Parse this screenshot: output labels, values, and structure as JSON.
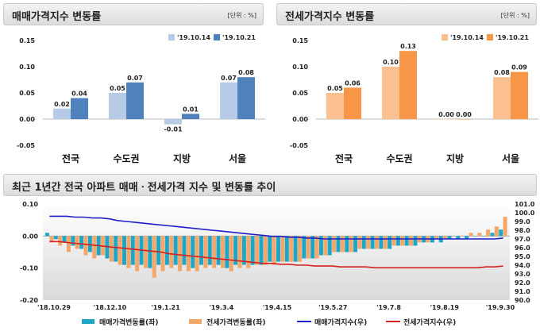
{
  "panels": {
    "sale": {
      "title": "매매가격지수 변동률",
      "unit": "[단위 : %]"
    },
    "jeonse": {
      "title": "전세가격지수 변동률",
      "unit": "[단위 : %]"
    },
    "trend": {
      "title": "최근 1년간 전국 아파트 매매ㆍ전세가격 지수 및 변동률 추이"
    }
  },
  "colors": {
    "sale_prev": "#b7cbe6",
    "sale_curr": "#4f81bd",
    "jeonse_prev": "#fac090",
    "jeonse_curr": "#f79646",
    "idx_sale": "#1f1fc8",
    "idx_jeonse": "#d42020",
    "bar_sale": "#1ea6c6",
    "bar_jeonse": "#f4a76b"
  },
  "chart_data": [
    {
      "type": "bar",
      "title": "매매가격지수 변동률",
      "unit": "[단위 : %]",
      "categories": [
        "전국",
        "수도권",
        "지방",
        "서울"
      ],
      "series": [
        {
          "name": "'19.10.14",
          "values": [
            0.02,
            0.05,
            -0.01,
            0.07
          ]
        },
        {
          "name": "'19.10.21",
          "values": [
            0.04,
            0.07,
            0.01,
            0.08
          ]
        }
      ],
      "labels": [
        [
          "0.02",
          "0.05",
          "-0.01",
          "0.07"
        ],
        [
          "0.04",
          "0.07",
          "0.01",
          "0.08"
        ]
      ],
      "ylim": [
        -0.05,
        0.15
      ],
      "yticks": [
        "0.15",
        "0.10",
        "0.05",
        "0.00",
        "-0.05"
      ],
      "legend": "top-right"
    },
    {
      "type": "bar",
      "title": "전세가격지수 변동률",
      "unit": "[단위 : %]",
      "categories": [
        "전국",
        "수도권",
        "지방",
        "서울"
      ],
      "series": [
        {
          "name": "'19.10.14",
          "values": [
            0.05,
            0.1,
            0.0,
            0.08
          ]
        },
        {
          "name": "'19.10.21",
          "values": [
            0.06,
            0.13,
            0.0,
            0.09
          ]
        }
      ],
      "labels": [
        [
          "0.05",
          "0.10",
          "0.00",
          "0.08"
        ],
        [
          "0.06",
          "0.13",
          "0.00",
          "0.09"
        ]
      ],
      "ylim": [
        -0.05,
        0.15
      ],
      "yticks": [
        "0.15",
        "0.10",
        "0.05",
        "0.00",
        "-0.05"
      ],
      "legend": "top-right"
    },
    {
      "type": "bar+line",
      "title": "최근 1년간 전국 아파트 매매ㆍ전세가격 지수 및 변동률 추이",
      "x_labels": [
        "'18.10.29",
        "'18.12.10",
        "'19.1.21",
        "'19.3.4",
        "'19.4.15",
        "'19.5.27",
        "'19.7.8",
        "'19.8.19",
        "'19.9.30"
      ],
      "y_left": {
        "ticks": [
          "0.10",
          "0.00",
          "-0.10",
          "-0.20"
        ],
        "range": [
          -0.2,
          0.1
        ]
      },
      "y_right": {
        "ticks": [
          "101.0",
          "100.0",
          "99.0",
          "98.0",
          "97.0",
          "96.0",
          "95.0",
          "94.0",
          "93.0",
          "92.0",
          "91.0",
          "90.0"
        ],
        "range": [
          90,
          101
        ]
      },
      "series": [
        {
          "name": "매매가격변동률(좌)",
          "axis": "left",
          "kind": "bar",
          "values": [
            0.01,
            -0.01,
            -0.02,
            -0.03,
            -0.04,
            -0.05,
            -0.06,
            -0.07,
            -0.08,
            -0.09,
            -0.09,
            -0.09,
            -0.1,
            -0.09,
            -0.09,
            -0.09,
            -0.09,
            -0.1,
            -0.09,
            -0.09,
            -0.09,
            -0.1,
            -0.09,
            -0.09,
            -0.09,
            -0.09,
            -0.08,
            -0.08,
            -0.08,
            -0.08,
            -0.07,
            -0.07,
            -0.06,
            -0.06,
            -0.05,
            -0.05,
            -0.05,
            -0.04,
            -0.04,
            -0.04,
            -0.04,
            -0.03,
            -0.03,
            -0.03,
            -0.02,
            -0.02,
            -0.02,
            -0.01,
            -0.01,
            -0.01,
            0.0,
            0.0,
            0.01,
            0.02
          ]
        },
        {
          "name": "전세가격변동률(좌)",
          "axis": "left",
          "kind": "bar",
          "values": [
            -0.02,
            -0.03,
            -0.05,
            -0.04,
            -0.06,
            -0.07,
            -0.06,
            -0.08,
            -0.09,
            -0.1,
            -0.11,
            -0.1,
            -0.13,
            -0.11,
            -0.1,
            -0.11,
            -0.11,
            -0.11,
            -0.1,
            -0.1,
            -0.1,
            -0.11,
            -0.1,
            -0.1,
            -0.09,
            -0.09,
            -0.09,
            -0.08,
            -0.08,
            -0.08,
            -0.07,
            -0.07,
            -0.06,
            -0.05,
            -0.05,
            -0.05,
            -0.04,
            -0.04,
            -0.04,
            -0.04,
            -0.03,
            -0.03,
            -0.03,
            -0.02,
            -0.02,
            -0.01,
            -0.01,
            0.0,
            0.0,
            0.01,
            0.01,
            0.02,
            0.03,
            0.06
          ]
        },
        {
          "name": "매매가격지수(우)",
          "axis": "right",
          "kind": "line",
          "values": [
            99.6,
            99.6,
            99.6,
            99.5,
            99.5,
            99.4,
            99.4,
            99.3,
            99.1,
            99.0,
            98.9,
            98.8,
            98.7,
            98.6,
            98.5,
            98.4,
            98.3,
            98.2,
            98.1,
            98.0,
            97.9,
            97.8,
            97.7,
            97.6,
            97.5,
            97.4,
            97.3,
            97.3,
            97.2,
            97.2,
            97.1,
            97.1,
            97.0,
            97.0,
            97.0,
            97.0,
            97.0,
            97.0,
            97.0,
            97.0,
            97.0,
            97.0,
            97.0,
            97.0,
            97.0,
            97.0,
            97.0,
            97.0,
            97.0,
            97.0,
            97.0,
            97.0,
            97.0,
            97.1
          ]
        },
        {
          "name": "전세가격지수(우)",
          "axis": "right",
          "kind": "line",
          "values": [
            96.7,
            96.7,
            96.6,
            96.5,
            96.4,
            96.3,
            96.2,
            96.1,
            96.0,
            95.9,
            95.8,
            95.7,
            95.6,
            95.5,
            95.3,
            95.2,
            95.1,
            95.0,
            94.9,
            94.8,
            94.7,
            94.6,
            94.5,
            94.4,
            94.3,
            94.2,
            94.2,
            94.1,
            94.1,
            94.0,
            94.0,
            93.9,
            93.9,
            93.9,
            93.8,
            93.8,
            93.8,
            93.8,
            93.7,
            93.7,
            93.7,
            93.7,
            93.7,
            93.7,
            93.7,
            93.7,
            93.7,
            93.7,
            93.7,
            93.7,
            93.7,
            93.8,
            93.8,
            93.9
          ]
        }
      ],
      "legend": "bottom"
    }
  ]
}
